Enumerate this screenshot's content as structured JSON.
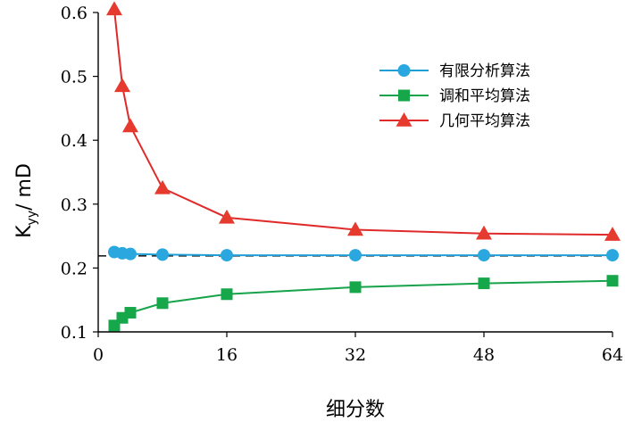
{
  "chart_data": {
    "type": "line",
    "xlabel": "细分数",
    "ylabel_main": "K",
    "ylabel_sub": "yy",
    "ylabel_unit": "/ mD",
    "xlim": [
      0,
      64
    ],
    "ylim": [
      0.1,
      0.6
    ],
    "xticks": [
      0,
      16,
      32,
      48,
      64
    ],
    "yticks": [
      0.1,
      0.2,
      0.3,
      0.4,
      0.5,
      0.6
    ],
    "legend_position": "top-right",
    "reference_line": {
      "y": 0.219,
      "style": "dashed",
      "color": "#222222"
    },
    "series": [
      {
        "name": "有限分析算法",
        "marker": "circle",
        "color": "#1f9fd6",
        "markerColor": "#2aa7df",
        "x": [
          2,
          3,
          4,
          8,
          16,
          32,
          48,
          64
        ],
        "values": [
          0.225,
          0.223,
          0.222,
          0.221,
          0.22,
          0.22,
          0.22,
          0.22
        ]
      },
      {
        "name": "调和平均算法",
        "marker": "square",
        "color": "#16a34a",
        "markerColor": "#17a74b",
        "x": [
          2,
          3,
          4,
          8,
          16,
          32,
          48,
          64
        ],
        "values": [
          0.11,
          0.122,
          0.13,
          0.145,
          0.159,
          0.17,
          0.176,
          0.18
        ]
      },
      {
        "name": "几何平均算法",
        "marker": "triangle",
        "color": "#e02a2a",
        "markerColor": "#e63a2e",
        "x": [
          2,
          3,
          4,
          8,
          16,
          32,
          48,
          64
        ],
        "values": [
          0.605,
          0.485,
          0.422,
          0.325,
          0.279,
          0.26,
          0.254,
          0.252
        ]
      }
    ]
  }
}
